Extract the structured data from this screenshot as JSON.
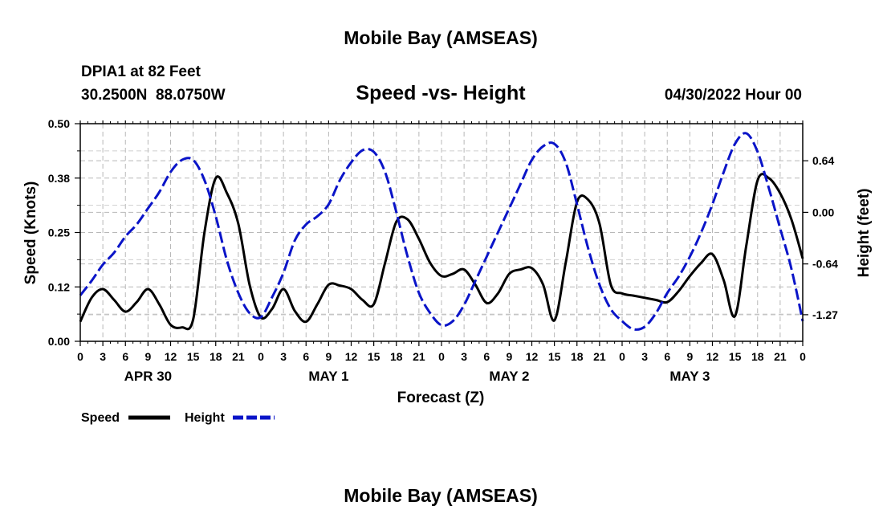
{
  "page_title": "Mobile Bay (AMSEAS)",
  "footer_title": "Mobile Bay (AMSEAS)",
  "station": {
    "name_line": "DPIA1 at 82 Feet",
    "coords_line": "30.2500N  88.0750W"
  },
  "run_time": "04/30/2022 Hour 00",
  "chart_data": {
    "type": "line",
    "title": "Speed -vs- Height",
    "xlabel": "Forecast (Z)",
    "ylabel_left": "Speed (Knots)",
    "ylabel_right": "Height (feet)",
    "x_unit": "hours since 04/30/2022 00Z",
    "xlim": [
      0,
      96
    ],
    "ylim_left": [
      0.0,
      0.5
    ],
    "ylim_right": [
      -1.6,
      1.1
    ],
    "yticks_left": [
      "0.00",
      "0.12",
      "0.25",
      "0.38",
      "0.50"
    ],
    "yticks_left_values": [
      0.0,
      0.125,
      0.25,
      0.375,
      0.5
    ],
    "yticks_right": [
      "0.64",
      "0.00",
      "-0.64",
      "-1.27"
    ],
    "yticks_right_values": [
      0.64,
      0.0,
      -0.64,
      -1.27
    ],
    "xtick_labels": [
      "0",
      "3",
      "6",
      "9",
      "12",
      "15",
      "18",
      "21",
      "0",
      "3",
      "6",
      "9",
      "12",
      "15",
      "18",
      "21",
      "0",
      "3",
      "6",
      "9",
      "12",
      "15",
      "18",
      "21",
      "0",
      "3",
      "6",
      "9",
      "12",
      "15",
      "18",
      "21",
      "0"
    ],
    "xtick_values": [
      0,
      3,
      6,
      9,
      12,
      15,
      18,
      21,
      24,
      27,
      30,
      33,
      36,
      39,
      42,
      45,
      48,
      51,
      54,
      57,
      60,
      63,
      66,
      69,
      72,
      75,
      78,
      81,
      84,
      87,
      90,
      93,
      96
    ],
    "day_labels": [
      {
        "label": "APR 30",
        "hour": 9
      },
      {
        "label": "MAY 1",
        "hour": 33
      },
      {
        "label": "MAY 2",
        "hour": 57
      },
      {
        "label": "MAY 3",
        "hour": 81
      }
    ],
    "grid": true,
    "legend_position": "bottom-left",
    "series": [
      {
        "name": "Speed",
        "axis": "left",
        "color": "#000000",
        "dash": "solid",
        "x": [
          0,
          1.5,
          3,
          4.5,
          6,
          7.5,
          9,
          10.5,
          12,
          13.5,
          15,
          16.5,
          18,
          19.5,
          21,
          22.5,
          24,
          25.5,
          27,
          28.5,
          30,
          31.5,
          33,
          34.5,
          36,
          37.5,
          39,
          40.5,
          42,
          43.5,
          45,
          46.5,
          48,
          49.5,
          51,
          52.5,
          54,
          55.5,
          57,
          58.5,
          60,
          61.5,
          63,
          64.5,
          66,
          67.5,
          69,
          70.5,
          72,
          73.5,
          75,
          76.5,
          78,
          79.5,
          81,
          82.5,
          84,
          85.5,
          87,
          88.5,
          90,
          91.5,
          93,
          94.5,
          96
        ],
        "y": [
          0.045,
          0.1,
          0.12,
          0.095,
          0.068,
          0.09,
          0.12,
          0.085,
          0.038,
          0.032,
          0.05,
          0.25,
          0.375,
          0.34,
          0.27,
          0.13,
          0.055,
          0.075,
          0.12,
          0.07,
          0.045,
          0.085,
          0.13,
          0.128,
          0.12,
          0.095,
          0.085,
          0.18,
          0.275,
          0.28,
          0.235,
          0.18,
          0.15,
          0.155,
          0.165,
          0.13,
          0.088,
          0.11,
          0.155,
          0.165,
          0.168,
          0.13,
          0.048,
          0.18,
          0.32,
          0.325,
          0.27,
          0.13,
          0.11,
          0.105,
          0.1,
          0.095,
          0.09,
          0.115,
          0.15,
          0.18,
          0.2,
          0.14,
          0.058,
          0.22,
          0.37,
          0.375,
          0.34,
          0.28,
          0.19
        ]
      },
      {
        "name": "Height",
        "axis": "right",
        "color": "#0a14c8",
        "dash": "dashed",
        "x": [
          0,
          1.5,
          3,
          4.5,
          6,
          7.5,
          9,
          10.5,
          12,
          13.5,
          15,
          16.5,
          18,
          19.5,
          21,
          22.5,
          24,
          25.5,
          27,
          28.5,
          30,
          31.5,
          33,
          34.5,
          36,
          37.5,
          39,
          40.5,
          42,
          43.5,
          45,
          46.5,
          48,
          49.5,
          51,
          52.5,
          54,
          55.5,
          57,
          58.5,
          60,
          61.5,
          63,
          64.5,
          66,
          67.5,
          69,
          70.5,
          72,
          73.5,
          75,
          76.5,
          78,
          79.5,
          81,
          82.5,
          84,
          85.5,
          87,
          88.5,
          90,
          91.5,
          93,
          94.5,
          96
        ],
        "y": [
          -1.03,
          -0.85,
          -0.65,
          -0.5,
          -0.3,
          -0.15,
          0.05,
          0.25,
          0.5,
          0.65,
          0.65,
          0.4,
          -0.05,
          -0.6,
          -1.0,
          -1.25,
          -1.3,
          -1.05,
          -0.75,
          -0.35,
          -0.15,
          -0.05,
          0.1,
          0.4,
          0.62,
          0.77,
          0.75,
          0.5,
          0.0,
          -0.55,
          -1.0,
          -1.25,
          -1.4,
          -1.35,
          -1.15,
          -0.85,
          -0.55,
          -0.25,
          0.05,
          0.35,
          0.65,
          0.82,
          0.85,
          0.62,
          0.1,
          -0.45,
          -0.9,
          -1.2,
          -1.35,
          -1.45,
          -1.42,
          -1.25,
          -1.0,
          -0.8,
          -0.55,
          -0.25,
          0.1,
          0.5,
          0.85,
          0.98,
          0.75,
          0.3,
          -0.2,
          -0.7,
          -1.35
        ]
      }
    ]
  },
  "legend": {
    "speed_label": "Speed",
    "height_label": "Height"
  }
}
